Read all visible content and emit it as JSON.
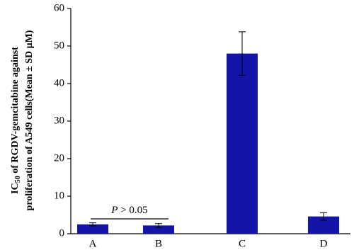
{
  "chart_data": {
    "type": "bar",
    "y_label": {
      "line1": [
        "IC",
        "50",
        " of RGDV-gemcitabine against"
      ],
      "line2": "proliferation of A549 cells(Mean ± SD μM)"
    },
    "categories": [
      "A",
      "B",
      "C",
      "D"
    ],
    "values": [
      2.5,
      2.2,
      48,
      4.6
    ],
    "errors": [
      0.4,
      0.5,
      5.8,
      1.0
    ],
    "color": "#1414a8",
    "ylim": [
      0,
      60
    ],
    "yticks": [
      0,
      10,
      20,
      30,
      40,
      50,
      60
    ],
    "annotation": [
      "P",
      " > 0.05"
    ]
  }
}
